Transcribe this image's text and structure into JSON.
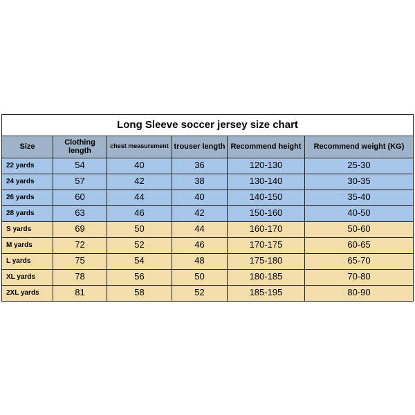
{
  "title": "Long Sleeve soccer jersey size chart",
  "columns": [
    {
      "label": "Size",
      "class": "c0"
    },
    {
      "label": "Clothing length",
      "class": "c1"
    },
    {
      "label": "chest measurement",
      "class": "c2",
      "small": true
    },
    {
      "label": "trouser length",
      "class": "c3"
    },
    {
      "label": "Recommend height",
      "class": "c4"
    },
    {
      "label": "Recommend weight (KG)",
      "class": "c5"
    }
  ],
  "rows": [
    {
      "group": "blue",
      "cells": [
        "22 yards",
        "54",
        "40",
        "36",
        "120-130",
        "25-30"
      ]
    },
    {
      "group": "blue",
      "cells": [
        "24 yards",
        "57",
        "42",
        "38",
        "130-140",
        "30-35"
      ]
    },
    {
      "group": "blue",
      "cells": [
        "26 yards",
        "60",
        "44",
        "40",
        "140-150",
        "35-40"
      ]
    },
    {
      "group": "blue",
      "cells": [
        "28 yards",
        "63",
        "46",
        "42",
        "150-160",
        "40-50"
      ]
    },
    {
      "group": "yellow",
      "cells": [
        "S yards",
        "69",
        "50",
        "44",
        "160-170",
        "50-60"
      ]
    },
    {
      "group": "yellow",
      "cells": [
        "M yards",
        "72",
        "52",
        "46",
        "170-175",
        "60-65"
      ]
    },
    {
      "group": "yellow",
      "cells": [
        "L yards",
        "75",
        "54",
        "48",
        "175-180",
        "65-70"
      ]
    },
    {
      "group": "yellow",
      "cells": [
        "XL yards",
        "78",
        "56",
        "50",
        "180-185",
        "70-80"
      ]
    },
    {
      "group": "yellow",
      "cells": [
        "2XL yards",
        "81",
        "58",
        "52",
        "185-195",
        "80-90"
      ]
    }
  ],
  "colors": {
    "header_bg": "#9fb3c8",
    "group_blue": "#a7c5e8",
    "group_yellow": "#f3deab",
    "border": "#222222",
    "page_bg": "#ffffff"
  }
}
